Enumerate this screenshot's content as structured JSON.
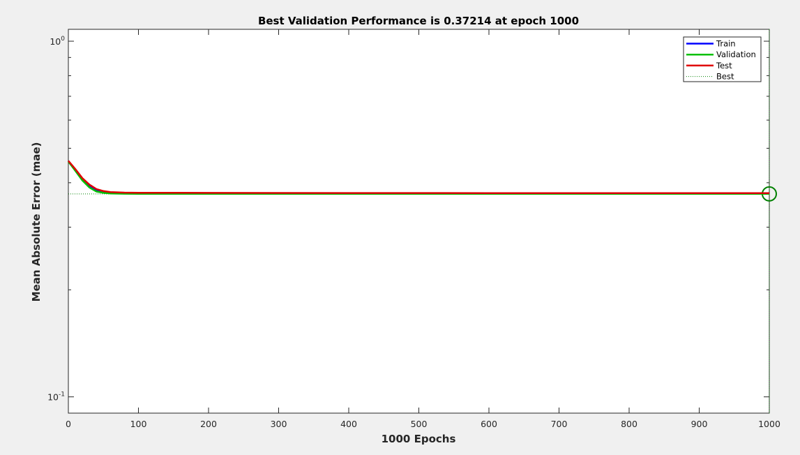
{
  "chart_data": {
    "type": "line",
    "title": "Best Validation Performance is 0.37214 at epoch 1000",
    "xlabel": "1000 Epochs",
    "ylabel": "Mean Absolute Error  (mae)",
    "x_scale": "linear",
    "y_scale": "log",
    "xlim": [
      0,
      1000
    ],
    "ylim": [
      0.09,
      1.08
    ],
    "x_ticks": [
      0,
      100,
      200,
      300,
      400,
      500,
      600,
      700,
      800,
      900,
      1000
    ],
    "y_ticks": [
      {
        "value": 0.1,
        "base": "10",
        "exp": "-1"
      },
      {
        "value": 1,
        "base": "10",
        "exp": "0"
      }
    ],
    "grid": false,
    "legend_position": "top-right",
    "best": {
      "epoch": 1000,
      "value": 0.37214,
      "color": "#008000"
    },
    "series": [
      {
        "name": "Train",
        "color": "#0000ff",
        "style": "solid",
        "x": [
          0,
          10,
          20,
          30,
          40,
          50,
          60,
          80,
          100,
          200,
          400,
          600,
          800,
          1000
        ],
        "y": [
          0.46,
          0.435,
          0.41,
          0.393,
          0.382,
          0.3775,
          0.3755,
          0.3745,
          0.3742,
          0.3738,
          0.3735,
          0.3733,
          0.3732,
          0.3731
        ]
      },
      {
        "name": "Validation",
        "color": "#00c000",
        "style": "solid",
        "x": [
          0,
          10,
          20,
          30,
          40,
          50,
          60,
          80,
          100,
          200,
          400,
          600,
          800,
          1000
        ],
        "y": [
          0.459,
          0.432,
          0.406,
          0.388,
          0.378,
          0.3745,
          0.373,
          0.3725,
          0.3723,
          0.3722,
          0.3722,
          0.37215,
          0.37214,
          0.37214
        ]
      },
      {
        "name": "Test",
        "color": "#e00000",
        "style": "solid",
        "x": [
          0,
          10,
          20,
          30,
          40,
          50,
          60,
          80,
          100,
          200,
          400,
          600,
          800,
          1000
        ],
        "y": [
          0.461,
          0.437,
          0.412,
          0.395,
          0.384,
          0.379,
          0.3765,
          0.3752,
          0.3748,
          0.3745,
          0.3742,
          0.374,
          0.3739,
          0.3738
        ]
      },
      {
        "name": "Best",
        "color": "#008000",
        "style": "dotted",
        "x": [],
        "y": []
      }
    ]
  }
}
